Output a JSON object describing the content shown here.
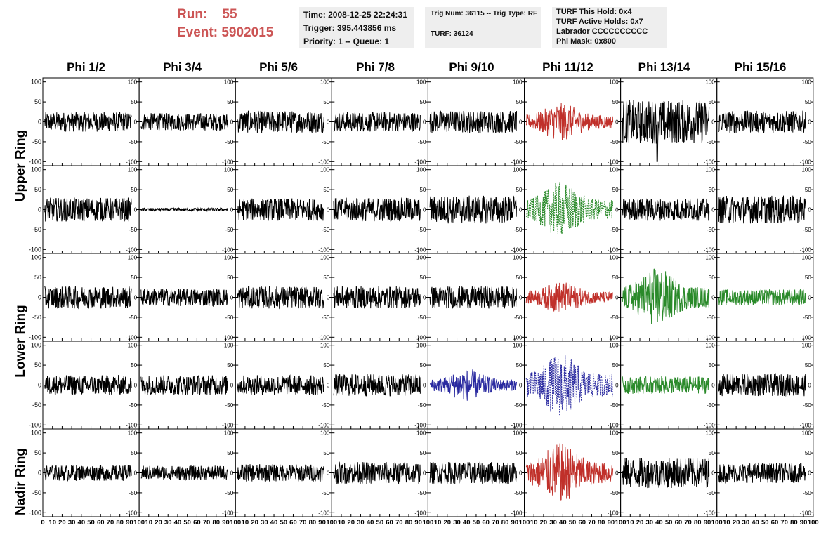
{
  "header": {
    "run_label": "Run:",
    "run_value": "55",
    "event_label": "Event:",
    "event_value": "5902015"
  },
  "info_time": {
    "time": "Time: 2008-12-25 22:24:31",
    "trigger": "Trigger: 395.443856 ms",
    "priority": "Priority: 1 -- Queue: 1"
  },
  "info_trig": {
    "trig": "Trig Num: 36115 -- Trig Type: RF",
    "turf": "TURF: 36124"
  },
  "info_turf": {
    "this_hold": "TURF This Hold: 0x4",
    "active_holds": "TURF Active Holds: 0x7",
    "labrador": "Labrador CCCCCCCCCC",
    "phi_mask": "Phi Mask: 0x800"
  },
  "phi_headers": [
    "Phi 1/2",
    "Phi 3/4",
    "Phi 5/6",
    "Phi 7/8",
    "Phi 9/10",
    "Phi 11/12",
    "Phi 13/14",
    "Phi 15/16"
  ],
  "ring_labels": {
    "upper": "Upper Ring",
    "lower": "Lower Ring",
    "nadir": "Nadir Ring"
  },
  "colors": {
    "black": "#000000",
    "red": "#c0302a",
    "green": "#2a8a2a",
    "blue": "#2a2aa0",
    "header_text": "#cc5555",
    "info_bg": "#eeeeee"
  },
  "chart_data": {
    "type": "line",
    "x_range": [
      0,
      100
    ],
    "y_range": [
      -110,
      110
    ],
    "y_ticks": [
      100,
      50,
      0,
      -50,
      -100
    ],
    "x_ticks": [
      0,
      10,
      20,
      30,
      40,
      50,
      60,
      70,
      80,
      90,
      100
    ],
    "columns": [
      "Phi 1/2",
      "Phi 3/4",
      "Phi 5/6",
      "Phi 7/8",
      "Phi 9/10",
      "Phi 11/12",
      "Phi 13/14",
      "Phi 15/16"
    ],
    "rows": [
      {
        "ring": "Upper Ring",
        "traces": [
          {
            "color": "black",
            "amp": 25,
            "style": "solid"
          },
          {
            "color": "black",
            "amp": 22,
            "style": "solid"
          },
          {
            "color": "black",
            "amp": 28,
            "style": "solid"
          },
          {
            "color": "black",
            "amp": 25,
            "style": "solid"
          },
          {
            "color": "black",
            "amp": 28,
            "style": "solid"
          },
          {
            "color": "red",
            "amp": 48,
            "style": "solid",
            "burst_at": 38
          },
          {
            "color": "black",
            "amp": 55,
            "style": "solid",
            "spike_at": 38,
            "spike_min": -100
          },
          {
            "color": "black",
            "amp": 28,
            "style": "solid"
          }
        ]
      },
      {
        "ring": "Upper Ring",
        "traces": [
          {
            "color": "black",
            "amp": 30,
            "style": "solid"
          },
          {
            "color": "black",
            "amp": 4,
            "style": "solid"
          },
          {
            "color": "black",
            "amp": 28,
            "style": "solid"
          },
          {
            "color": "black",
            "amp": 30,
            "style": "solid"
          },
          {
            "color": "black",
            "amp": 35,
            "style": "solid"
          },
          {
            "color": "green",
            "amp": 70,
            "style": "dashed",
            "burst_at": 38
          },
          {
            "color": "black",
            "amp": 28,
            "style": "solid"
          },
          {
            "color": "black",
            "amp": 35,
            "style": "solid"
          }
        ]
      },
      {
        "ring": "Lower Ring",
        "traces": [
          {
            "color": "black",
            "amp": 28,
            "style": "solid"
          },
          {
            "color": "black",
            "amp": 22,
            "style": "solid"
          },
          {
            "color": "black",
            "amp": 28,
            "style": "solid"
          },
          {
            "color": "black",
            "amp": 28,
            "style": "solid"
          },
          {
            "color": "black",
            "amp": 28,
            "style": "solid"
          },
          {
            "color": "red",
            "amp": 40,
            "style": "solid",
            "burst_at": 38
          },
          {
            "color": "green",
            "amp": 75,
            "style": "solid",
            "burst_at": 38
          },
          {
            "color": "green",
            "amp": 20,
            "style": "solid"
          }
        ]
      },
      {
        "ring": "Lower Ring",
        "traces": [
          {
            "color": "black",
            "amp": 25,
            "style": "solid"
          },
          {
            "color": "black",
            "amp": 25,
            "style": "solid"
          },
          {
            "color": "black",
            "amp": 25,
            "style": "solid"
          },
          {
            "color": "black",
            "amp": 28,
            "style": "solid"
          },
          {
            "color": "blue",
            "amp": 40,
            "style": "solid",
            "burst_at": 40
          },
          {
            "color": "blue",
            "amp": 80,
            "style": "dashed",
            "burst_at": 38
          },
          {
            "color": "green",
            "amp": 22,
            "style": "solid"
          },
          {
            "color": "black",
            "amp": 28,
            "style": "solid"
          }
        ]
      },
      {
        "ring": "Nadir Ring",
        "traces": [
          {
            "color": "black",
            "amp": 20,
            "style": "solid"
          },
          {
            "color": "black",
            "amp": 18,
            "style": "solid"
          },
          {
            "color": "black",
            "amp": 22,
            "style": "solid"
          },
          {
            "color": "black",
            "amp": 28,
            "style": "solid"
          },
          {
            "color": "black",
            "amp": 28,
            "style": "solid"
          },
          {
            "color": "red",
            "amp": 75,
            "style": "solid",
            "burst_at": 38
          },
          {
            "color": "black",
            "amp": 38,
            "style": "solid"
          },
          {
            "color": "black",
            "amp": 25,
            "style": "solid"
          }
        ]
      }
    ]
  }
}
